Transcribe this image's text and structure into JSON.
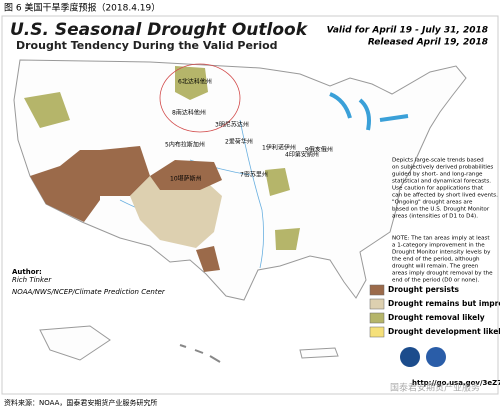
{
  "caption": "图 6 美国干旱季度预报（2018.4.19）",
  "header": {
    "title": "U.S. Seasonal Drought Outlook",
    "subtitle": "Drought Tendency During the Valid Period",
    "valid": "Valid for April 19 - July 31, 2018",
    "released": "Released April 19, 2018"
  },
  "description": [
    "Depicts large-scale trends based",
    "on subjectively derived probabilities",
    "guided by short- and long-range",
    "statistical and dynamical forecasts.",
    "Use caution for applications that",
    "can be affected by short lived events.",
    "\"Ongoing\" drought areas are",
    "based on the U.S. Drought Monitor",
    "areas (intensities of D1 to D4)."
  ],
  "note": [
    "NOTE: The tan areas imply at least",
    "a 1-category improvement in the",
    "Drought Monitor intensity levels by",
    "the end of the period, although",
    "drought will remain. The green",
    "areas imply drought removal by the",
    "end of the period (D0 or none)."
  ],
  "author": {
    "label": "Author:",
    "name": "Rich Tinker",
    "org": "NOAA/NWS/NCEP/Climate Prediction Center"
  },
  "legend": [
    {
      "label": "Drought persists",
      "color": "#9b6a4a"
    },
    {
      "label": "Drought remains but improves",
      "color": "#ddd0b0"
    },
    {
      "label": "Drought removal likely",
      "color": "#b5b56a"
    },
    {
      "label": "Drought development likely",
      "color": "#f5e07a"
    }
  ],
  "states": [
    "6北达科他州",
    "8南达科他州",
    "3明尼苏达州",
    "5内布拉斯加州",
    "2爱荷华州",
    "1伊利诺伊州",
    "4印第安纳州",
    "9俄亥俄州",
    "10堪萨斯州",
    "7密苏里州"
  ],
  "url": "http://go.usa.gov/3eZ73",
  "watermark": "国泰君安期货产业服务",
  "source": "资料来源：NOAA，国泰君安期货产业服务研究所"
}
